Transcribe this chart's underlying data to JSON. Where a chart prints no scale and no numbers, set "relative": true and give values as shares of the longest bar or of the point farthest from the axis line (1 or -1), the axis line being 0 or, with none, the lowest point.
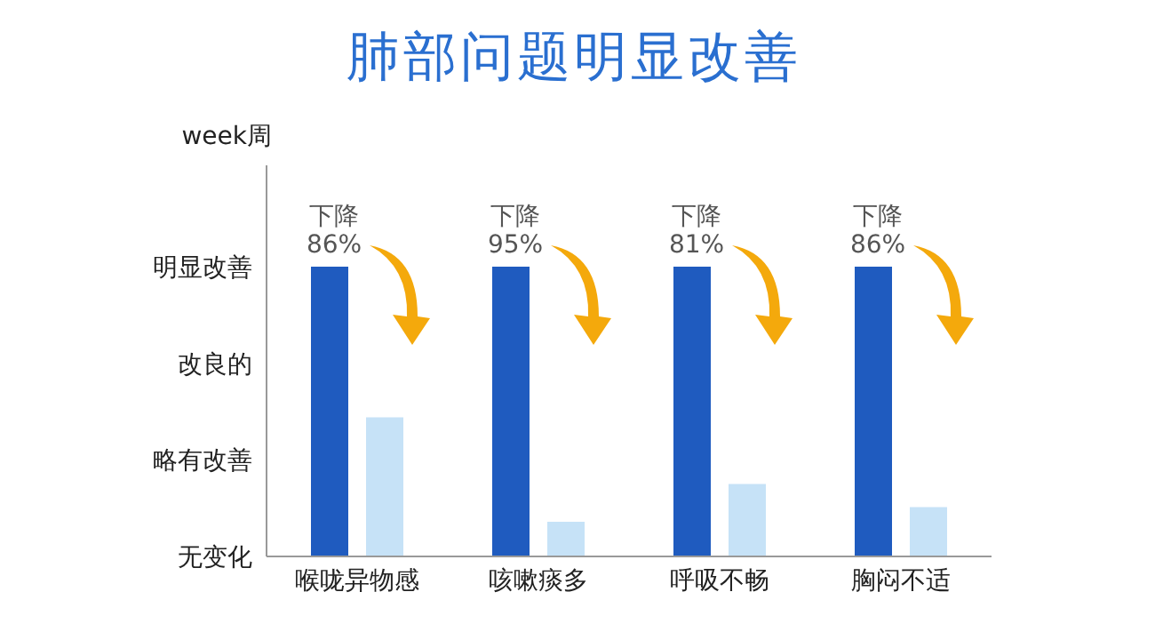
{
  "chart_data": {
    "type": "bar",
    "title": "肺部问题明显改善",
    "ylabel": "week周",
    "relative": true,
    "categories": [
      "喉咙异物感",
      "咳嗽痰多",
      "呼吸不畅",
      "胸闷不适"
    ],
    "series": [
      {
        "color": "#1f5bbf",
        "values": [
          1,
          1,
          1,
          1
        ]
      },
      {
        "color": "#c6e2f7",
        "values": [
          0.48,
          0.12,
          0.25,
          0.17
        ]
      }
    ],
    "legend": false,
    "annotations": [
      "明显改善",
      "改良的",
      "略有改善",
      "无变化",
      {
        "text": "下降\n86%",
        "x": "喉咙异物感",
        "y": 1
      },
      {
        "text": "下降\n95%",
        "x": "咳嗽痰多",
        "y": 1
      },
      {
        "text": "下降\n81%",
        "x": "呼吸不畅",
        "y": 1
      },
      {
        "text": "下降\n86%",
        "x": "胸闷不适",
        "y": 1
      }
    ]
  }
}
